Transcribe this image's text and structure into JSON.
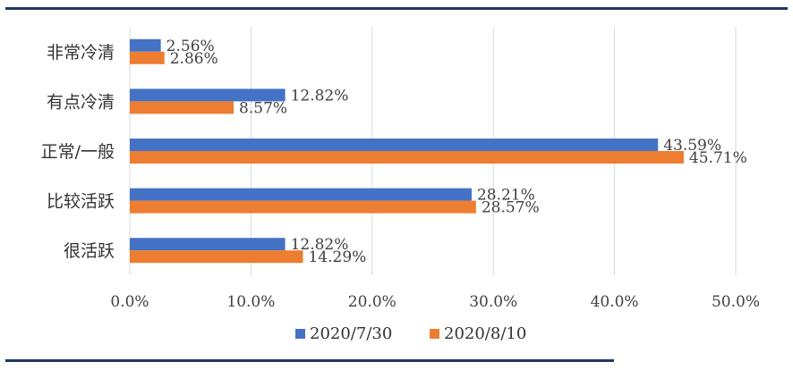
{
  "chart_data": {
    "type": "bar",
    "orientation": "horizontal",
    "categories": [
      "非常冷清",
      "有点冷清",
      "正常/一般",
      "比较活跃",
      "很活跃"
    ],
    "series": [
      {
        "name": "2020/7/30",
        "color": "#4472c4",
        "values": [
          2.56,
          12.82,
          43.59,
          28.21,
          12.82
        ],
        "labels": [
          "2.56%",
          "12.82%",
          "43.59%",
          "28.21%",
          "12.82%"
        ]
      },
      {
        "name": "2020/8/10",
        "color": "#ed7d31",
        "values": [
          2.86,
          8.57,
          45.71,
          28.57,
          14.29
        ],
        "labels": [
          "2.86%",
          "8.57%",
          "45.71%",
          "28.57%",
          "14.29%"
        ]
      }
    ],
    "xlim": [
      0,
      50
    ],
    "xticks": [
      "0.0%",
      "10.0%",
      "20.0%",
      "30.0%",
      "40.0%",
      "50.0%"
    ],
    "grid": true,
    "legend_position": "bottom"
  }
}
